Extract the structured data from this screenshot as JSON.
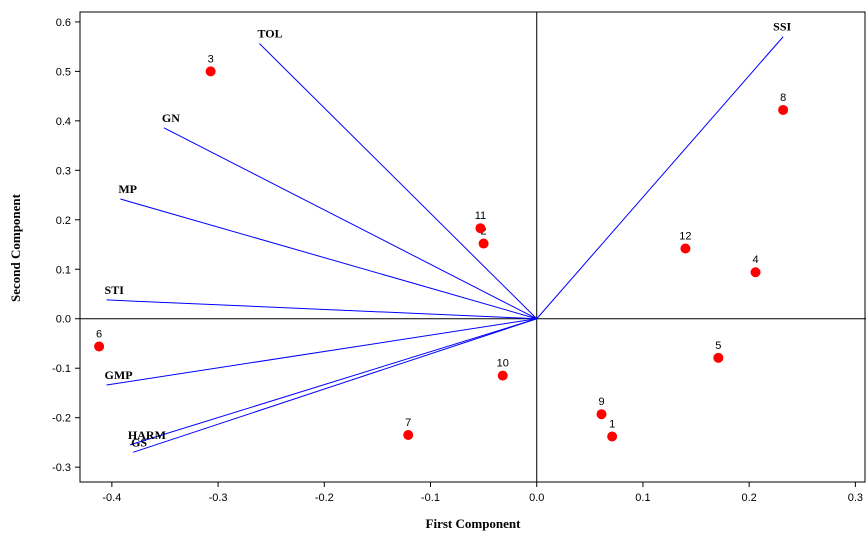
{
  "chart_data": {
    "type": "scatter",
    "subtype": "biplot",
    "title": "",
    "xlabel": "First Component",
    "ylabel": "Second Component",
    "xlim": [
      -0.43,
      0.31
    ],
    "ylim": [
      -0.33,
      0.62
    ],
    "xticks": [
      -0.4,
      -0.3,
      -0.2,
      -0.1,
      0.0,
      0.1,
      0.2,
      0.3
    ],
    "xtick_labels": [
      "-0.4",
      "-0.3",
      "-0.2",
      "-0.1",
      "0.0",
      "0.1",
      "0.2",
      "0.3"
    ],
    "yticks": [
      -0.3,
      -0.2,
      -0.1,
      0.0,
      0.1,
      0.2,
      0.3,
      0.4,
      0.5,
      0.6
    ],
    "ytick_labels": [
      "-0.3",
      "-0.2",
      "-0.1",
      "0.0",
      "0.1",
      "0.2",
      "0.3",
      "0.4",
      "0.5",
      "0.6"
    ],
    "grid": false,
    "reference_lines": [
      0,
      0
    ],
    "point_color": "#ff0000",
    "vector_color": "#0000ff",
    "points": [
      {
        "label": "1",
        "x": 0.071,
        "y": -0.238
      },
      {
        "label": "2",
        "x": -0.05,
        "y": 0.152
      },
      {
        "label": "3",
        "x": -0.307,
        "y": 0.5
      },
      {
        "label": "4",
        "x": 0.206,
        "y": 0.094
      },
      {
        "label": "5",
        "x": 0.171,
        "y": -0.079
      },
      {
        "label": "6",
        "x": -0.412,
        "y": -0.056
      },
      {
        "label": "7",
        "x": -0.121,
        "y": -0.235
      },
      {
        "label": "8",
        "x": 0.232,
        "y": 0.422
      },
      {
        "label": "9",
        "x": 0.061,
        "y": -0.193
      },
      {
        "label": "10",
        "x": -0.032,
        "y": -0.115
      },
      {
        "label": "11",
        "x": -0.053,
        "y": 0.183
      },
      {
        "label": "12",
        "x": 0.14,
        "y": 0.142
      }
    ],
    "vectors": [
      {
        "label": "TOL",
        "x": -0.261,
        "y": 0.556
      },
      {
        "label": "SSI",
        "x": 0.232,
        "y": 0.57
      },
      {
        "label": "GN",
        "x": -0.351,
        "y": 0.386
      },
      {
        "label": "MP",
        "x": -0.392,
        "y": 0.242
      },
      {
        "label": "STI",
        "x": -0.405,
        "y": 0.038
      },
      {
        "label": "GMP",
        "x": -0.405,
        "y": -0.134
      },
      {
        "label": "HARM",
        "x": -0.383,
        "y": -0.255
      },
      {
        "label": "GS",
        "x": -0.38,
        "y": -0.27
      }
    ]
  }
}
